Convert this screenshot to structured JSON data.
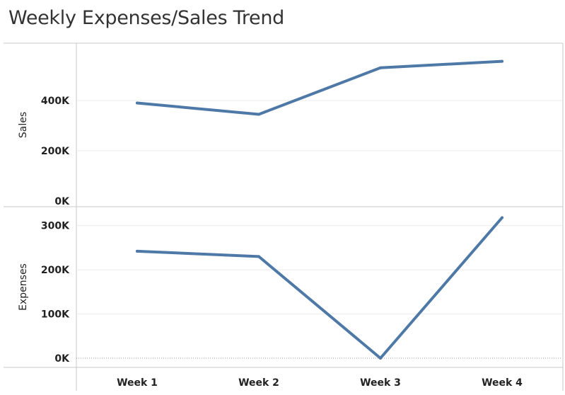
{
  "chart_data": {
    "type": "line",
    "title": "Weekly Expenses/Sales Trend",
    "categories": [
      "Week 1",
      "Week 2",
      "Week 3",
      "Week 4"
    ],
    "grid": true,
    "color": "#4e79a7",
    "panels": [
      {
        "ylabel": "Sales",
        "ylim": [
          0,
          600000
        ],
        "yticks": [
          0,
          200000,
          400000
        ],
        "ytick_labels": [
          "0K",
          "200K",
          "400K"
        ],
        "values": [
          390000,
          345000,
          530000,
          556000
        ]
      },
      {
        "ylabel": "Expenses",
        "ylim": [
          0,
          330000
        ],
        "yticks": [
          0,
          100000,
          200000,
          300000
        ],
        "ytick_labels": [
          "0K",
          "100K",
          "200K",
          "300K"
        ],
        "values": [
          242000,
          230000,
          0,
          318000
        ]
      }
    ]
  }
}
